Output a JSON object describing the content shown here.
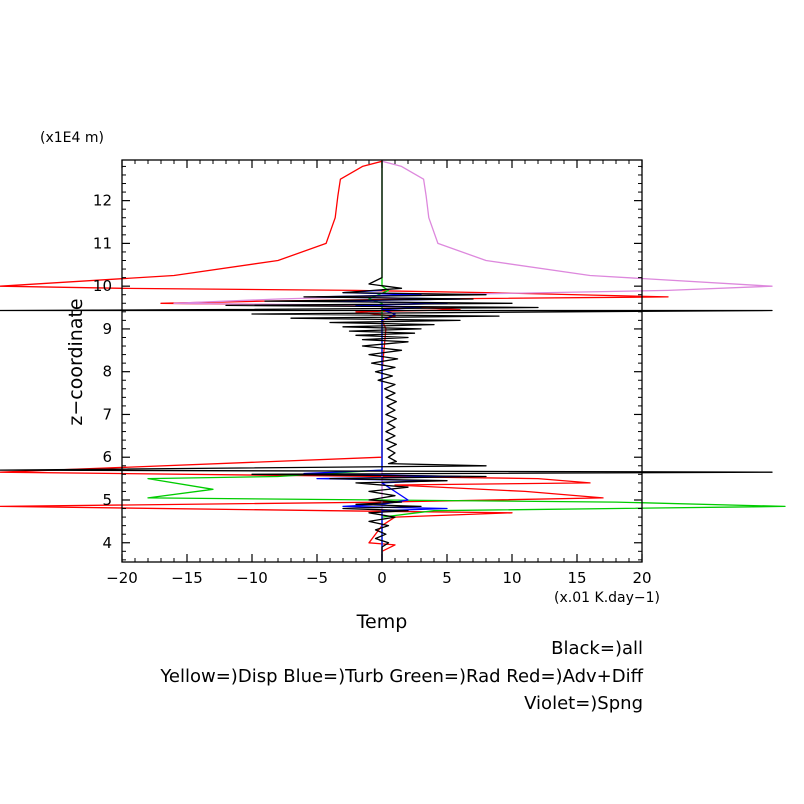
{
  "chart_data": {
    "type": "line",
    "xlabel": "Temp",
    "ylabel": "z−coordinate",
    "x_units": "(x.01 K.day−1)",
    "y_units": "(x1E4 m)",
    "xlim": [
      -20,
      20
    ],
    "ylim": [
      3.55,
      12.95
    ],
    "x_ticks": [
      -20,
      -15,
      -10,
      -5,
      0,
      5,
      10,
      15,
      20
    ],
    "x_tick_labels": [
      "−20",
      "−15",
      "−10",
      "−5",
      "0",
      "5",
      "10",
      "15",
      "20"
    ],
    "y_ticks": [
      4,
      5,
      6,
      7,
      8,
      9,
      10,
      11,
      12
    ],
    "y_tick_labels": [
      "4",
      "5",
      "6",
      "7",
      "8",
      "9",
      "10",
      "11",
      "12"
    ],
    "grid": false,
    "legend": {
      "placement": "bottom-right",
      "lines": [
        "Black=)all",
        "Yellow=)Disp Blue=)Turb Green=)Rad Red=)Adv+Diff",
        "Violet=)Spng"
      ]
    },
    "series": [
      {
        "name": "Adv+Diff",
        "color": "#ff0000",
        "points": [
          [
            0,
            12.92
          ],
          [
            -1.5,
            12.8
          ],
          [
            -3.2,
            12.5
          ],
          [
            -3.4,
            12.1
          ],
          [
            -3.6,
            11.6
          ],
          [
            -4.3,
            11.0
          ],
          [
            -8,
            10.6
          ],
          [
            -16,
            10.25
          ],
          [
            -30,
            10.0
          ],
          [
            -20,
            9.95
          ],
          [
            -2,
            9.9
          ],
          [
            8,
            9.85
          ],
          [
            22,
            9.75
          ],
          [
            3,
            9.7
          ],
          [
            -9,
            9.65
          ],
          [
            -17,
            9.6
          ],
          [
            -3,
            9.55
          ],
          [
            3,
            9.5
          ],
          [
            6,
            9.45
          ],
          [
            -2,
            9.4
          ],
          [
            1,
            9.3
          ],
          [
            0,
            9.2
          ],
          [
            0.3,
            9.0
          ],
          [
            0,
            8.0
          ],
          [
            0,
            6.0
          ],
          [
            -30,
            5.65
          ],
          [
            0,
            5.55
          ],
          [
            12,
            5.5
          ],
          [
            16,
            5.4
          ],
          [
            1,
            5.35
          ],
          [
            11,
            5.2
          ],
          [
            17,
            5.05
          ],
          [
            0,
            4.95
          ],
          [
            -30,
            4.85
          ],
          [
            -4,
            4.75
          ],
          [
            10,
            4.7
          ],
          [
            1,
            4.6
          ],
          [
            0,
            4.4
          ],
          [
            -1,
            4.0
          ],
          [
            1,
            3.95
          ],
          [
            0,
            3.8
          ],
          [
            0,
            3.55
          ]
        ]
      },
      {
        "name": "Spng",
        "color": "#dd88dd",
        "points": [
          [
            0,
            12.92
          ],
          [
            1.5,
            12.8
          ],
          [
            3.2,
            12.5
          ],
          [
            3.4,
            12.1
          ],
          [
            3.6,
            11.6
          ],
          [
            4.3,
            11.0
          ],
          [
            8,
            10.6
          ],
          [
            16,
            10.25
          ],
          [
            30,
            10.0
          ],
          [
            22,
            9.9
          ],
          [
            4,
            9.8
          ],
          [
            -8,
            9.7
          ],
          [
            -16,
            9.6
          ],
          [
            0,
            9.55
          ],
          [
            0,
            3.55
          ]
        ]
      },
      {
        "name": "Rad",
        "color": "#00cc00",
        "points": [
          [
            0,
            10.0
          ],
          [
            0,
            11.2
          ],
          [
            0,
            12.92
          ],
          [
            0,
            10.0
          ],
          [
            0.5,
            9.9
          ],
          [
            -1,
            9.7
          ],
          [
            0,
            9.6
          ],
          [
            0,
            5.7
          ],
          [
            -8,
            5.55
          ],
          [
            -18,
            5.5
          ],
          [
            -13,
            5.25
          ],
          [
            -18,
            5.05
          ],
          [
            0,
            5.0
          ],
          [
            18,
            4.95
          ],
          [
            31,
            4.85
          ],
          [
            4,
            4.75
          ],
          [
            0,
            4.6
          ],
          [
            0,
            3.55
          ]
        ]
      },
      {
        "name": "Turb",
        "color": "#0000ff",
        "points": [
          [
            0,
            9.9
          ],
          [
            -3,
            9.85
          ],
          [
            3,
            9.8
          ],
          [
            -5,
            9.75
          ],
          [
            6,
            9.7
          ],
          [
            -4,
            9.65
          ],
          [
            5,
            9.6
          ],
          [
            -2,
            9.55
          ],
          [
            3,
            9.5
          ],
          [
            0,
            9.45
          ],
          [
            1,
            9.35
          ],
          [
            0,
            9.2
          ],
          [
            0,
            5.7
          ],
          [
            -6,
            5.62
          ],
          [
            6,
            5.55
          ],
          [
            -5,
            5.5
          ],
          [
            4,
            5.45
          ],
          [
            0,
            5.4
          ],
          [
            2,
            5.0
          ],
          [
            0,
            4.9
          ],
          [
            -3,
            4.85
          ],
          [
            5,
            4.8
          ],
          [
            0,
            4.75
          ],
          [
            0,
            3.55
          ]
        ]
      },
      {
        "name": "all",
        "color": "#000000",
        "points": [
          [
            0,
            12.92
          ],
          [
            0,
            10.2
          ],
          [
            -1,
            10.05
          ],
          [
            1.5,
            9.95
          ],
          [
            -3,
            9.85
          ],
          [
            8,
            9.8
          ],
          [
            -6,
            9.75
          ],
          [
            7,
            9.7
          ],
          [
            -9,
            9.65
          ],
          [
            10,
            9.6
          ],
          [
            -12,
            9.55
          ],
          [
            12,
            9.5
          ],
          [
            -14,
            9.45
          ],
          [
            -30,
            9.43
          ],
          [
            30,
            9.43
          ],
          [
            14,
            9.4
          ],
          [
            -10,
            9.35
          ],
          [
            9,
            9.3
          ],
          [
            -7,
            9.25
          ],
          [
            6,
            9.2
          ],
          [
            -4,
            9.15
          ],
          [
            4,
            9.1
          ],
          [
            -3,
            9.05
          ],
          [
            3,
            9.0
          ],
          [
            -2.5,
            8.95
          ],
          [
            2.5,
            8.9
          ],
          [
            -2,
            8.85
          ],
          [
            2,
            8.8
          ],
          [
            -1.5,
            8.75
          ],
          [
            2,
            8.7
          ],
          [
            -1.5,
            8.6
          ],
          [
            1.5,
            8.5
          ],
          [
            -1,
            8.4
          ],
          [
            1.2,
            8.3
          ],
          [
            -0.8,
            8.2
          ],
          [
            1,
            8.1
          ],
          [
            -0.5,
            8.0
          ],
          [
            0.8,
            7.9
          ],
          [
            -0.3,
            7.8
          ],
          [
            1,
            7.7
          ],
          [
            0.2,
            7.6
          ],
          [
            1,
            7.5
          ],
          [
            0.3,
            7.4
          ],
          [
            1.1,
            7.3
          ],
          [
            0.4,
            7.2
          ],
          [
            1,
            7.1
          ],
          [
            0.3,
            7.0
          ],
          [
            1.1,
            6.9
          ],
          [
            0.4,
            6.8
          ],
          [
            1,
            6.7
          ],
          [
            0.3,
            6.6
          ],
          [
            1,
            6.5
          ],
          [
            0.3,
            6.4
          ],
          [
            1.1,
            6.3
          ],
          [
            0.4,
            6.2
          ],
          [
            1,
            6.1
          ],
          [
            0.5,
            6.0
          ],
          [
            1.1,
            5.9
          ],
          [
            0.5,
            5.85
          ],
          [
            8,
            5.8
          ],
          [
            -30,
            5.7
          ],
          [
            30,
            5.65
          ],
          [
            -10,
            5.6
          ],
          [
            8,
            5.55
          ],
          [
            -4,
            5.5
          ],
          [
            5,
            5.45
          ],
          [
            -2,
            5.4
          ],
          [
            2,
            5.3
          ],
          [
            -1,
            5.2
          ],
          [
            1,
            5.1
          ],
          [
            -1,
            5.0
          ],
          [
            1.5,
            4.95
          ],
          [
            -2,
            4.9
          ],
          [
            3,
            4.85
          ],
          [
            -3,
            4.8
          ],
          [
            2,
            4.75
          ],
          [
            -1,
            4.7
          ],
          [
            1,
            4.6
          ],
          [
            -1,
            4.5
          ],
          [
            0.5,
            4.4
          ],
          [
            -0.5,
            4.3
          ],
          [
            0.3,
            4.2
          ],
          [
            -0.5,
            4.1
          ],
          [
            0.5,
            4.0
          ],
          [
            0,
            3.9
          ],
          [
            0,
            3.55
          ]
        ]
      }
    ]
  }
}
